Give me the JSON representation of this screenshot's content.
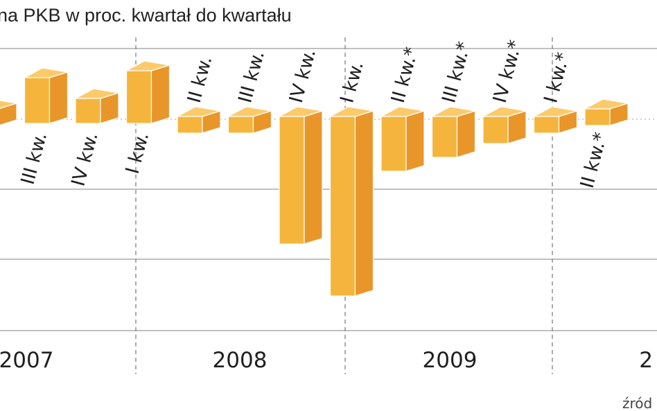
{
  "title": "na PKB w proc. kwartał do kwartału",
  "source": "źród",
  "chart_data": {
    "type": "bar",
    "style": "3d-boxes",
    "colors": {
      "front": "#F5B53C",
      "side": "#E8962A",
      "top": "#FBCB6B",
      "grid": "#9a9a9a",
      "divider": "#888888"
    },
    "grid": true,
    "ylim": [
      -2.55,
      1.05
    ],
    "years": [
      "2007",
      "2008",
      "2009",
      "2"
    ],
    "series": [
      {
        "values": [
          0.15,
          0.6,
          0.3,
          0.7,
          -0.15,
          -0.1,
          -1.8,
          -2.55,
          -0.75,
          -0.55,
          -0.35,
          -0.15,
          0.15
        ],
        "labels": [
          "",
          "III kw.",
          "IV kw.",
          "I kw.",
          "II kw.",
          "III kw.",
          "IV kw.",
          "I kw.",
          "II kw.*",
          "III kw.*",
          "IV kw.*",
          "I kw.*",
          "II kw.*"
        ]
      }
    ]
  }
}
